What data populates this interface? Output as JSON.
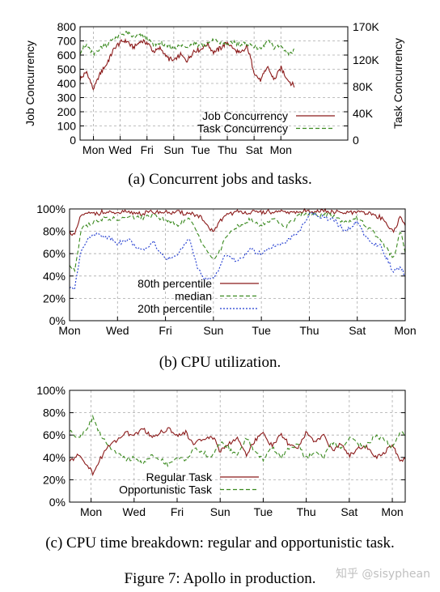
{
  "captions": {
    "a": "(a) Concurrent jobs and tasks.",
    "b": "(b) CPU utilization.",
    "c": "(c) CPU time breakdown: regular and opportunistic task.",
    "figure": "Figure 7: Apollo in production."
  },
  "watermark": "知乎 @sisyphean",
  "chart_data": [
    {
      "type": "line",
      "ylabel": "Job Concurrency",
      "y2label": "Task Concurrency",
      "ylim": [
        0,
        800
      ],
      "y2lim": [
        0,
        170000
      ],
      "yticks": [
        "0",
        "100",
        "200",
        "300",
        "400",
        "500",
        "600",
        "700",
        "800"
      ],
      "y2ticks": [
        "0",
        "40K",
        "80K",
        "120K",
        "170K"
      ],
      "y2tick_values": [
        0,
        40000,
        80000,
        120000,
        170000
      ],
      "xlim": [
        0,
        10.0
      ],
      "xticks": [
        "Mon",
        "Wed",
        "Fri",
        "Sun",
        "Tue",
        "Thu",
        "Sat",
        "Mon"
      ],
      "xtick_positions": [
        0.5,
        1.5,
        2.5,
        3.5,
        4.5,
        5.5,
        6.5,
        7.5
      ],
      "grid": true,
      "legend_position": "bottom-right",
      "series": [
        {
          "name": "Job Concurrency",
          "axis": "left",
          "color": "#8b1a1a",
          "dash": "",
          "x": [
            0,
            0.25,
            0.5,
            0.75,
            1.0,
            1.25,
            1.5,
            1.75,
            2.0,
            2.25,
            2.5,
            2.75,
            3.0,
            3.25,
            3.5,
            3.75,
            4.0,
            4.25,
            4.5,
            4.75,
            5.0,
            5.25,
            5.5,
            5.75,
            6.0,
            6.25,
            6.5,
            6.75,
            7.0,
            7.25,
            7.5,
            7.75,
            8.0
          ],
          "y": [
            430,
            480,
            360,
            470,
            540,
            640,
            690,
            700,
            650,
            700,
            690,
            620,
            650,
            580,
            560,
            600,
            560,
            630,
            640,
            680,
            620,
            650,
            690,
            640,
            610,
            660,
            480,
            420,
            520,
            420,
            510,
            430,
            380
          ]
        },
        {
          "name": "Task Concurrency",
          "axis": "right",
          "color": "#3a8a1f",
          "dash": "5,3",
          "x": [
            0,
            0.25,
            0.5,
            0.75,
            1.0,
            1.25,
            1.5,
            1.75,
            2.0,
            2.25,
            2.5,
            2.75,
            3.0,
            3.25,
            3.5,
            3.75,
            4.0,
            4.25,
            4.5,
            4.75,
            5.0,
            5.25,
            5.5,
            5.75,
            6.0,
            6.25,
            6.5,
            6.75,
            7.0,
            7.25,
            7.5,
            7.75,
            8.0
          ],
          "y": [
            132000,
            142000,
            128000,
            138000,
            144000,
            152000,
            157000,
            160000,
            154000,
            157000,
            152000,
            143000,
            146000,
            140000,
            138000,
            142000,
            140000,
            146000,
            142000,
            144000,
            150000,
            146000,
            144000,
            147000,
            143000,
            145000,
            140000,
            136000,
            148000,
            138000,
            142000,
            130000,
            134000
          ]
        }
      ]
    },
    {
      "type": "line",
      "ylabel": "",
      "ylim": [
        0,
        100
      ],
      "yticks": [
        "0%",
        "20%",
        "40%",
        "60%",
        "80%",
        "100%"
      ],
      "xlim": [
        0,
        7
      ],
      "xticks": [
        "Mon",
        "Wed",
        "Fri",
        "Sun",
        "Tue",
        "Thu",
        "Sat",
        "Mon"
      ],
      "xtick_positions": [
        0,
        1,
        2,
        3,
        4,
        5,
        6,
        7
      ],
      "grid": true,
      "legend_position": "bottom-left",
      "series": [
        {
          "name": "80th percentile",
          "color": "#8b1a1a",
          "dash": "",
          "x": [
            0,
            0.1,
            0.25,
            0.5,
            0.75,
            1.0,
            1.25,
            1.5,
            1.75,
            2.0,
            2.25,
            2.5,
            2.65,
            2.75,
            2.9,
            3.0,
            3.1,
            3.25,
            3.5,
            3.75,
            4.0,
            4.25,
            4.5,
            4.75,
            5.0,
            5.25,
            5.5,
            5.75,
            6.0,
            6.25,
            6.5,
            6.75,
            6.9,
            7.0
          ],
          "y": [
            80,
            76,
            95,
            96,
            97,
            96,
            97,
            96,
            97,
            97,
            97,
            96,
            95,
            92,
            82,
            80,
            86,
            95,
            97,
            97,
            97,
            97,
            97,
            97,
            98,
            98,
            97,
            96,
            97,
            96,
            92,
            80,
            92,
            86
          ]
        },
        {
          "name": "median",
          "color": "#3a8a1f",
          "dash": "5,3",
          "x": [
            0,
            0.1,
            0.25,
            0.5,
            0.75,
            1.0,
            1.25,
            1.5,
            1.75,
            2.0,
            2.25,
            2.5,
            2.65,
            2.75,
            2.9,
            3.0,
            3.1,
            3.25,
            3.5,
            3.75,
            4.0,
            4.25,
            4.5,
            4.75,
            5.0,
            5.25,
            5.5,
            5.75,
            6.0,
            6.25,
            6.5,
            6.75,
            6.9,
            7.0
          ],
          "y": [
            50,
            44,
            84,
            88,
            92,
            90,
            93,
            92,
            94,
            90,
            86,
            91,
            80,
            72,
            60,
            55,
            58,
            75,
            84,
            90,
            85,
            92,
            84,
            94,
            96,
            95,
            94,
            88,
            92,
            82,
            72,
            55,
            80,
            62
          ]
        },
        {
          "name": "20th percentile",
          "color": "#1f3ad0",
          "dash": "2,2",
          "x": [
            0,
            0.1,
            0.25,
            0.5,
            0.75,
            1.0,
            1.25,
            1.5,
            1.75,
            2.0,
            2.25,
            2.5,
            2.65,
            2.75,
            2.9,
            3.0,
            3.1,
            3.25,
            3.5,
            3.75,
            4.0,
            4.25,
            4.5,
            4.75,
            5.0,
            5.25,
            5.5,
            5.75,
            6.0,
            6.25,
            6.5,
            6.75,
            6.9,
            7.0
          ],
          "y": [
            30,
            28,
            66,
            78,
            76,
            70,
            72,
            62,
            70,
            54,
            60,
            74,
            50,
            40,
            36,
            38,
            45,
            60,
            52,
            64,
            60,
            66,
            70,
            78,
            95,
            94,
            90,
            80,
            88,
            70,
            66,
            44,
            48,
            40
          ]
        }
      ]
    },
    {
      "type": "line",
      "ylabel": "",
      "ylim": [
        0,
        100
      ],
      "yticks": [
        "0%",
        "20%",
        "40%",
        "60%",
        "80%",
        "100%"
      ],
      "xlim": [
        0,
        7.8
      ],
      "xticks": [
        "Mon",
        "Wed",
        "Fri",
        "Sun",
        "Tue",
        "Thu",
        "Sat",
        "Mon"
      ],
      "xtick_positions": [
        0.5,
        1.5,
        2.5,
        3.5,
        4.5,
        5.5,
        6.5,
        7.5
      ],
      "grid": true,
      "legend_position": "bottom-center",
      "series": [
        {
          "name": "Regular Task",
          "color": "#8b1a1a",
          "dash": "",
          "x": [
            0,
            0.2,
            0.4,
            0.55,
            0.7,
            0.9,
            1.1,
            1.3,
            1.5,
            1.7,
            1.9,
            2.1,
            2.3,
            2.5,
            2.7,
            2.9,
            3.1,
            3.3,
            3.5,
            3.7,
            3.9,
            4.1,
            4.3,
            4.5,
            4.7,
            4.9,
            5.1,
            5.3,
            5.5,
            5.7,
            5.9,
            6.1,
            6.3,
            6.5,
            6.7,
            6.9,
            7.1,
            7.3,
            7.5,
            7.7,
            7.8
          ],
          "y": [
            36,
            42,
            34,
            25,
            38,
            50,
            56,
            62,
            60,
            66,
            58,
            62,
            66,
            60,
            62,
            52,
            56,
            60,
            46,
            52,
            58,
            42,
            55,
            62,
            50,
            60,
            52,
            48,
            62,
            54,
            60,
            46,
            52,
            42,
            48,
            50,
            40,
            44,
            52,
            36,
            40
          ]
        },
        {
          "name": "Opportunistic Task",
          "color": "#3a8a1f",
          "dash": "5,3",
          "x": [
            0,
            0.2,
            0.4,
            0.55,
            0.7,
            0.9,
            1.1,
            1.3,
            1.5,
            1.7,
            1.9,
            2.1,
            2.3,
            2.5,
            2.7,
            2.9,
            3.1,
            3.3,
            3.5,
            3.7,
            3.9,
            4.1,
            4.3,
            4.5,
            4.7,
            4.9,
            5.1,
            5.3,
            5.5,
            5.7,
            5.9,
            6.1,
            6.3,
            6.5,
            6.7,
            6.9,
            7.1,
            7.3,
            7.5,
            7.7,
            7.8
          ],
          "y": [
            64,
            58,
            66,
            76,
            62,
            50,
            44,
            38,
            40,
            34,
            42,
            38,
            34,
            40,
            38,
            48,
            44,
            40,
            54,
            48,
            42,
            58,
            45,
            38,
            50,
            40,
            48,
            52,
            38,
            46,
            40,
            54,
            48,
            58,
            52,
            50,
            60,
            56,
            48,
            64,
            60
          ]
        }
      ]
    }
  ]
}
